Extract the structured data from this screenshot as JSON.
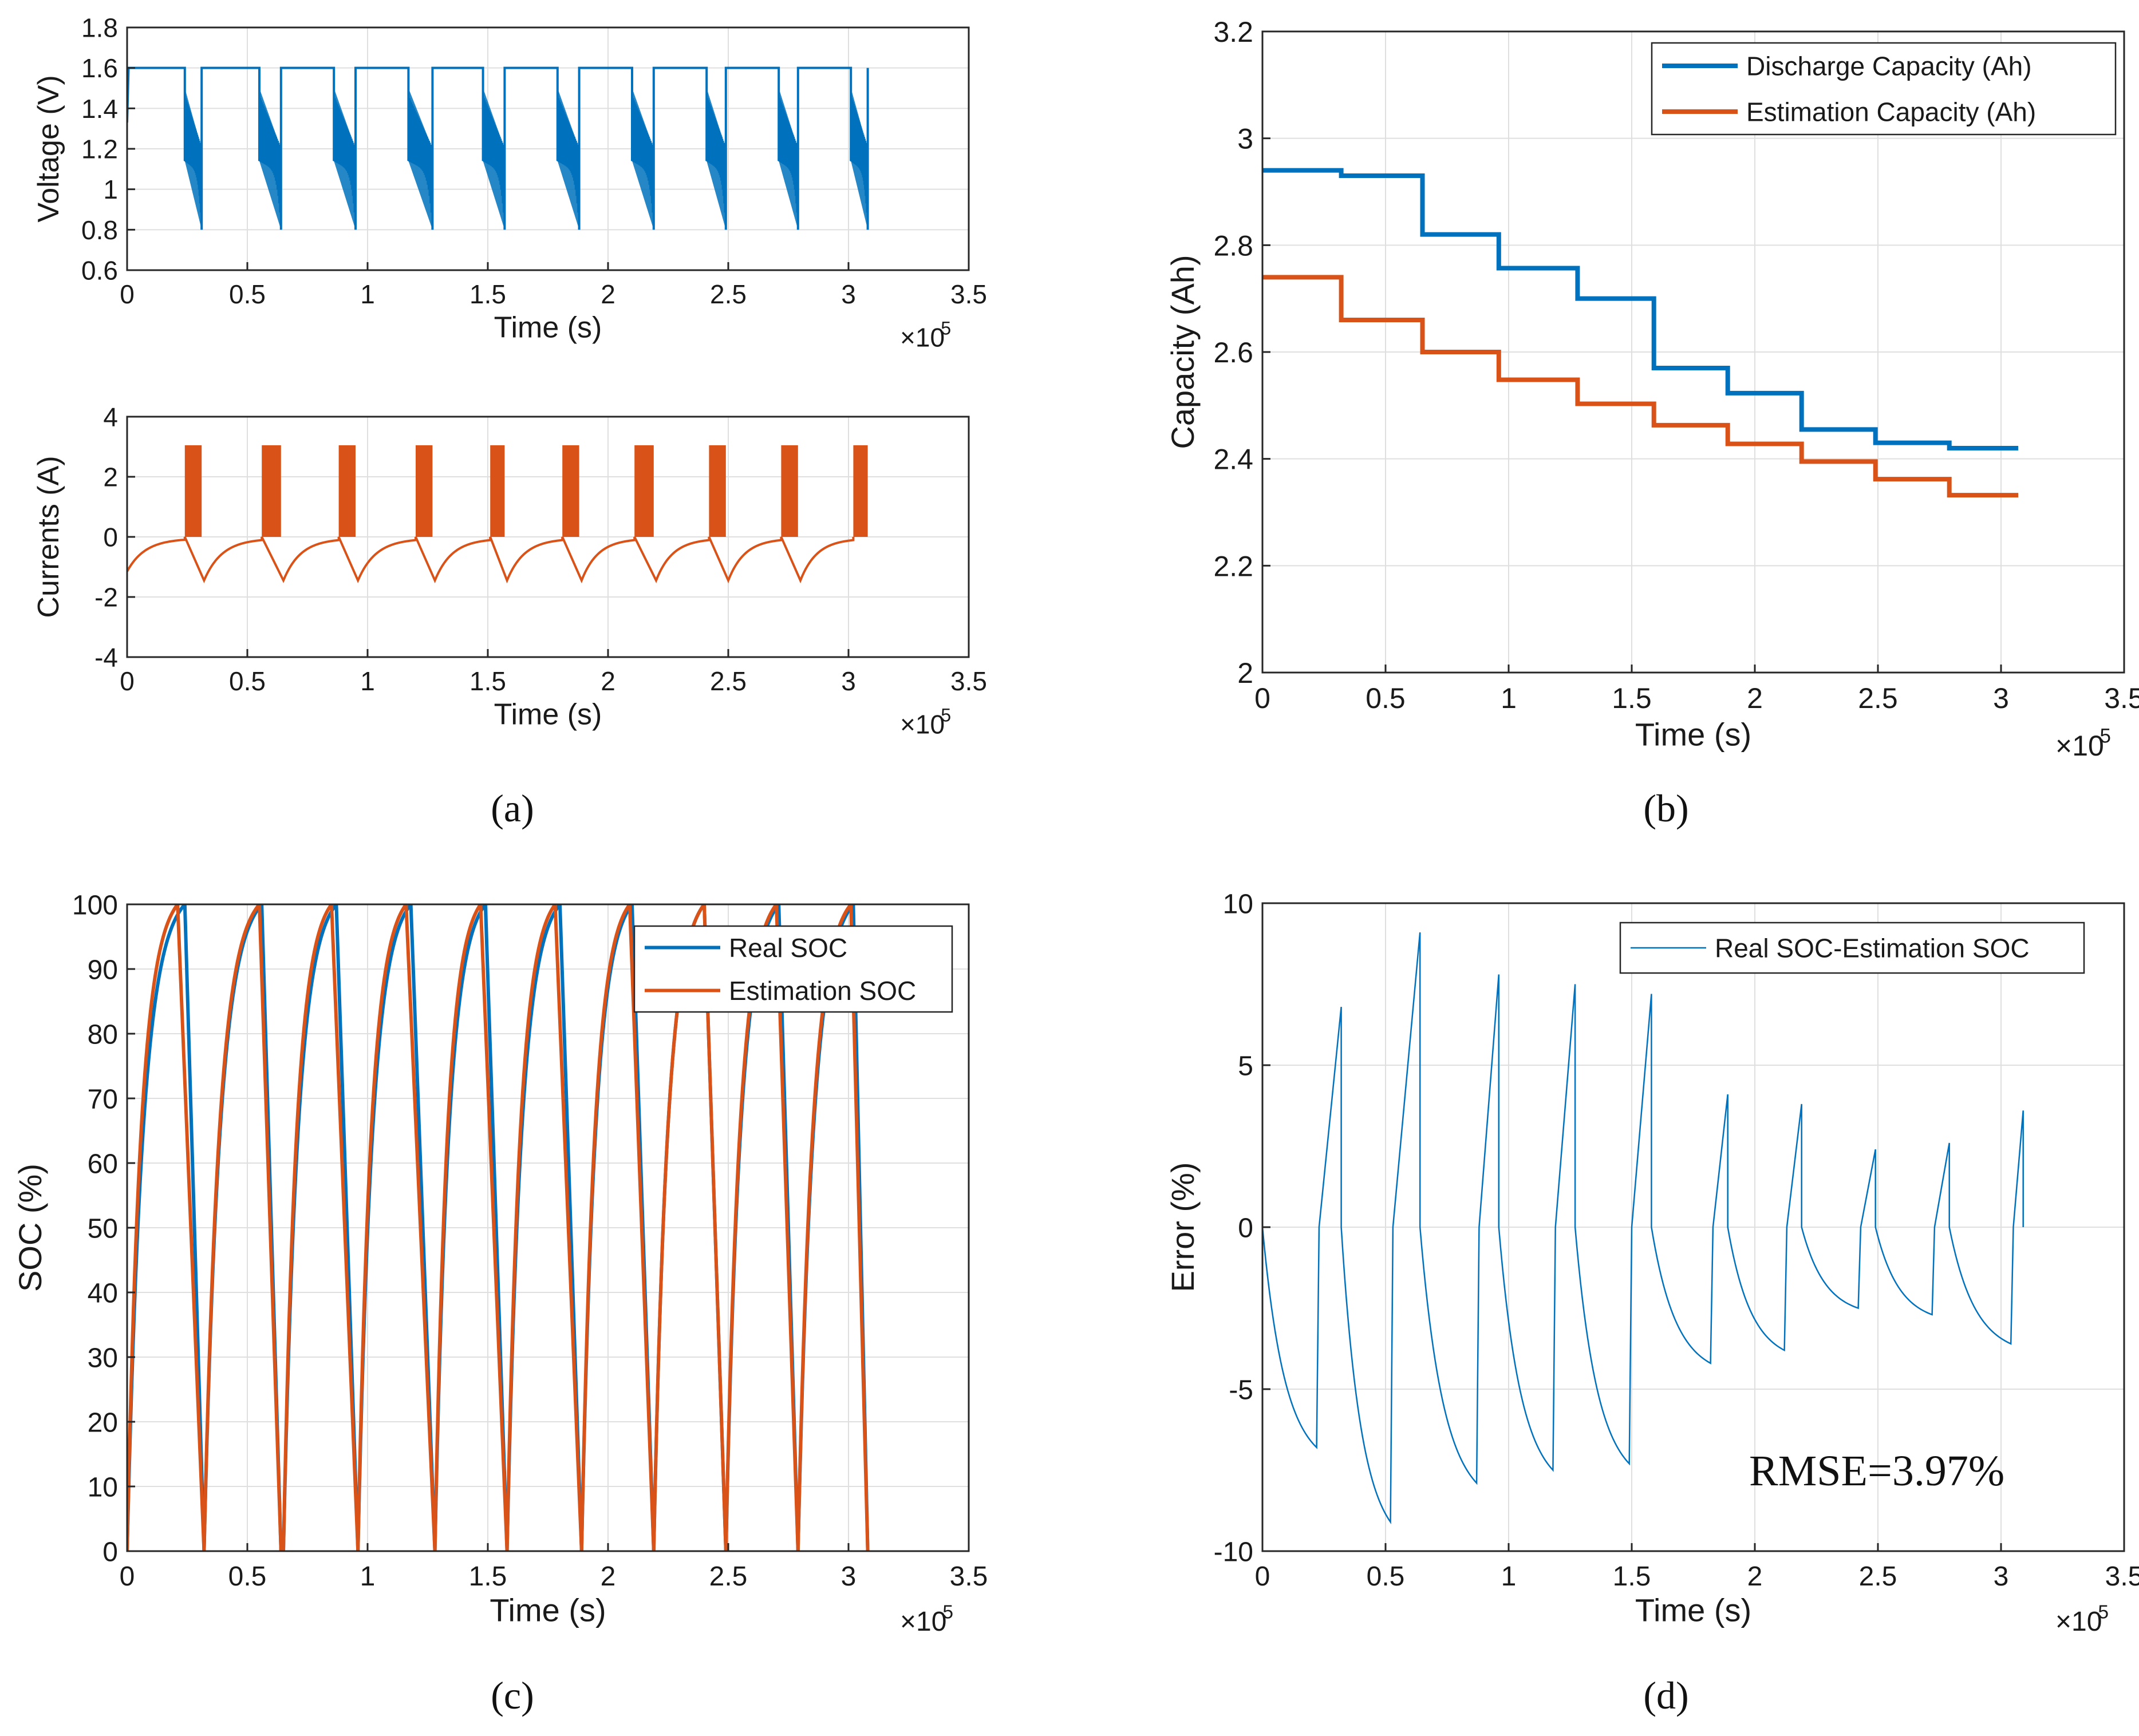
{
  "panels": {
    "a": "(a)",
    "b": "(b)",
    "c": "(c)",
    "d": "(d)"
  },
  "colors": {
    "blue": "#0072BD",
    "orange": "#D95319",
    "grid": "#dfdfdf",
    "axis": "#262626"
  },
  "chart_data": [
    {
      "id": "voltage",
      "panel": "a",
      "type": "line",
      "title": "",
      "xlabel": "Time (s)",
      "ylabel": "Voltage (V)",
      "xlim": [
        0,
        3.5
      ],
      "ylim": [
        0.6,
        1.8
      ],
      "xticks": [
        0,
        0.5,
        1,
        1.5,
        2,
        2.5,
        3,
        3.5
      ],
      "xticklabels": [
        "0",
        "0.5",
        "1",
        "1.5",
        "2",
        "2.5",
        "3",
        "3.5"
      ],
      "yticks": [
        0.6,
        0.8,
        1,
        1.2,
        1.4,
        1.6,
        1.8
      ],
      "yticklabels": [
        "0.6",
        "0.8",
        "1",
        "1.2",
        "1.4",
        "1.6",
        "1.8"
      ],
      "x_multiplier": "×10",
      "x_multiplier_exp": "5",
      "series": [
        {
          "name": "Voltage",
          "color": "#0072BD",
          "cycles": [
            [
              0.0,
              0.24,
              0.31
            ],
            [
              0.32,
              0.55,
              0.64
            ],
            [
              0.65,
              0.86,
              0.95
            ],
            [
              0.96,
              1.17,
              1.27
            ],
            [
              1.28,
              1.48,
              1.57
            ],
            [
              1.58,
              1.79,
              1.88
            ],
            [
              1.89,
              2.1,
              2.19
            ],
            [
              2.2,
              2.41,
              2.49
            ],
            [
              2.5,
              2.71,
              2.79
            ],
            [
              2.8,
              3.01,
              3.08
            ]
          ]
        }
      ]
    },
    {
      "id": "currents",
      "panel": "a",
      "type": "line",
      "title": "",
      "xlabel": "Time (s)",
      "ylabel": "Currents (A)",
      "xlim": [
        0,
        3.5
      ],
      "ylim": [
        -4,
        4
      ],
      "xticks": [
        0,
        0.5,
        1,
        1.5,
        2,
        2.5,
        3,
        3.5
      ],
      "xticklabels": [
        "0",
        "0.5",
        "1",
        "1.5",
        "2",
        "2.5",
        "3",
        "3.5"
      ],
      "yticks": [
        -4,
        -2,
        0,
        2,
        4
      ],
      "yticklabels": [
        "-4",
        "-2",
        "0",
        "2",
        "4"
      ],
      "x_multiplier": "×10",
      "x_multiplier_exp": "5",
      "series": [
        {
          "name": "Current",
          "color": "#D95319",
          "cycles": [
            [
              0.0,
              0.24,
              0.31
            ],
            [
              0.32,
              0.56,
              0.64
            ],
            [
              0.65,
              0.88,
              0.95
            ],
            [
              0.96,
              1.2,
              1.27
            ],
            [
              1.28,
              1.51,
              1.57
            ],
            [
              1.58,
              1.81,
              1.88
            ],
            [
              1.89,
              2.11,
              2.19
            ],
            [
              2.2,
              2.42,
              2.49
            ],
            [
              2.5,
              2.72,
              2.79
            ],
            [
              2.8,
              3.02,
              3.08
            ]
          ]
        }
      ]
    },
    {
      "id": "capacity",
      "panel": "b",
      "type": "line",
      "title": "",
      "xlabel": "Time (s)",
      "ylabel": "Capacity (Ah)",
      "xlim": [
        0,
        3.5
      ],
      "ylim": [
        2,
        3.2
      ],
      "xticks": [
        0,
        0.5,
        1,
        1.5,
        2,
        2.5,
        3,
        3.5
      ],
      "xticklabels": [
        "0",
        "0.5",
        "1",
        "1.5",
        "2",
        "2.5",
        "3",
        "3.5"
      ],
      "yticks": [
        2,
        2.2,
        2.4,
        2.6,
        2.8,
        3,
        3.2
      ],
      "yticklabels": [
        "2",
        "2.2",
        "2.4",
        "2.6",
        "2.8",
        "3",
        "3.2"
      ],
      "x_multiplier": "×10",
      "x_multiplier_exp": "5",
      "legend": "top-right",
      "series": [
        {
          "name": "Discharge Capacity (Ah)",
          "color": "#0072BD",
          "x": [
            0,
            0.32,
            0.65,
            0.96,
            1.28,
            1.59,
            1.89,
            2.19,
            2.49,
            2.79,
            3.07
          ],
          "y": [
            2.94,
            2.93,
            2.82,
            2.757,
            2.7,
            2.57,
            2.523,
            2.455,
            2.43,
            2.42,
            2.42
          ]
        },
        {
          "name": "Estimation Capacity (Ah)",
          "color": "#D95319",
          "x": [
            0,
            0.32,
            0.65,
            0.96,
            1.28,
            1.59,
            1.89,
            2.19,
            2.49,
            2.79,
            3.07
          ],
          "y": [
            2.74,
            2.66,
            2.6,
            2.548,
            2.503,
            2.463,
            2.428,
            2.395,
            2.362,
            2.332,
            2.332
          ]
        }
      ]
    },
    {
      "id": "soc",
      "panel": "c",
      "type": "line",
      "title": "",
      "xlabel": "Time (s)",
      "ylabel": "SOC (%)",
      "xlim": [
        0,
        3.5
      ],
      "ylim": [
        0,
        100
      ],
      "xticks": [
        0,
        0.5,
        1,
        1.5,
        2,
        2.5,
        3,
        3.5
      ],
      "xticklabels": [
        "0",
        "0.5",
        "1",
        "1.5",
        "2",
        "2.5",
        "3",
        "3.5"
      ],
      "yticks": [
        0,
        10,
        20,
        30,
        40,
        50,
        60,
        70,
        80,
        90,
        100
      ],
      "yticklabels": [
        "0",
        "10",
        "20",
        "30",
        "40",
        "50",
        "60",
        "70",
        "80",
        "90",
        "100"
      ],
      "x_multiplier": "×10",
      "x_multiplier_exp": "5",
      "legend": "top-right",
      "series": [
        {
          "name": "Real SOC",
          "color": "#0072BD",
          "cycles": [
            [
              0.0,
              0.24,
              0.32
            ],
            [
              0.32,
              0.56,
              0.64
            ],
            [
              0.65,
              0.87,
              0.96
            ],
            [
              0.96,
              1.18,
              1.28
            ],
            [
              1.28,
              1.49,
              1.58
            ],
            [
              1.58,
              1.8,
              1.89
            ],
            [
              1.89,
              2.1,
              2.19
            ],
            [
              2.19,
              2.4,
              2.49
            ],
            [
              2.49,
              2.71,
              2.79
            ],
            [
              2.79,
              3.02,
              3.08
            ]
          ]
        },
        {
          "name": "Estimation SOC",
          "color": "#D95319",
          "cycles": [
            [
              0.0,
              0.21,
              0.32
            ],
            [
              0.32,
              0.55,
              0.64
            ],
            [
              0.65,
              0.85,
              0.96
            ],
            [
              0.96,
              1.16,
              1.28
            ],
            [
              1.28,
              1.47,
              1.58
            ],
            [
              1.58,
              1.78,
              1.89
            ],
            [
              1.89,
              2.09,
              2.19
            ],
            [
              2.19,
              2.4,
              2.49
            ],
            [
              2.49,
              2.7,
              2.79
            ],
            [
              2.79,
              3.01,
              3.08
            ]
          ]
        }
      ]
    },
    {
      "id": "error",
      "panel": "d",
      "type": "line",
      "title": "",
      "xlabel": "Time (s)",
      "ylabel": "Error (%)",
      "xlim": [
        0,
        3.5
      ],
      "ylim": [
        -10,
        10
      ],
      "xticks": [
        0,
        0.5,
        1,
        1.5,
        2,
        2.5,
        3,
        3.5
      ],
      "xticklabels": [
        "0",
        "0.5",
        "1",
        "1.5",
        "2",
        "2.5",
        "3",
        "3.5"
      ],
      "yticks": [
        -10,
        -5,
        0,
        5,
        10
      ],
      "yticklabels": [
        "-10",
        "-5",
        "0",
        "5",
        "10"
      ],
      "x_multiplier": "×10",
      "x_multiplier_exp": "5",
      "legend": "top-right",
      "annotation": "RMSE=3.97%",
      "series": [
        {
          "name": "Real SOC-Estimation SOC",
          "color": "#0072BD",
          "cycles": [
            [
              0.0,
              0.22,
              -6.8,
              0.32,
              6.8
            ],
            [
              0.32,
              0.52,
              -9.1,
              0.64,
              9.1
            ],
            [
              0.64,
              0.87,
              -7.9,
              0.96,
              7.8
            ],
            [
              0.96,
              1.18,
              -7.5,
              1.27,
              7.5
            ],
            [
              1.27,
              1.49,
              -7.3,
              1.58,
              7.2
            ],
            [
              1.58,
              1.82,
              -4.2,
              1.89,
              4.1
            ],
            [
              1.89,
              2.12,
              -3.8,
              2.19,
              3.8
            ],
            [
              2.19,
              2.42,
              -2.5,
              2.49,
              2.4
            ],
            [
              2.49,
              2.72,
              -2.7,
              2.79,
              2.6
            ],
            [
              2.79,
              3.04,
              -3.6,
              3.09,
              3.6
            ]
          ]
        }
      ]
    }
  ]
}
